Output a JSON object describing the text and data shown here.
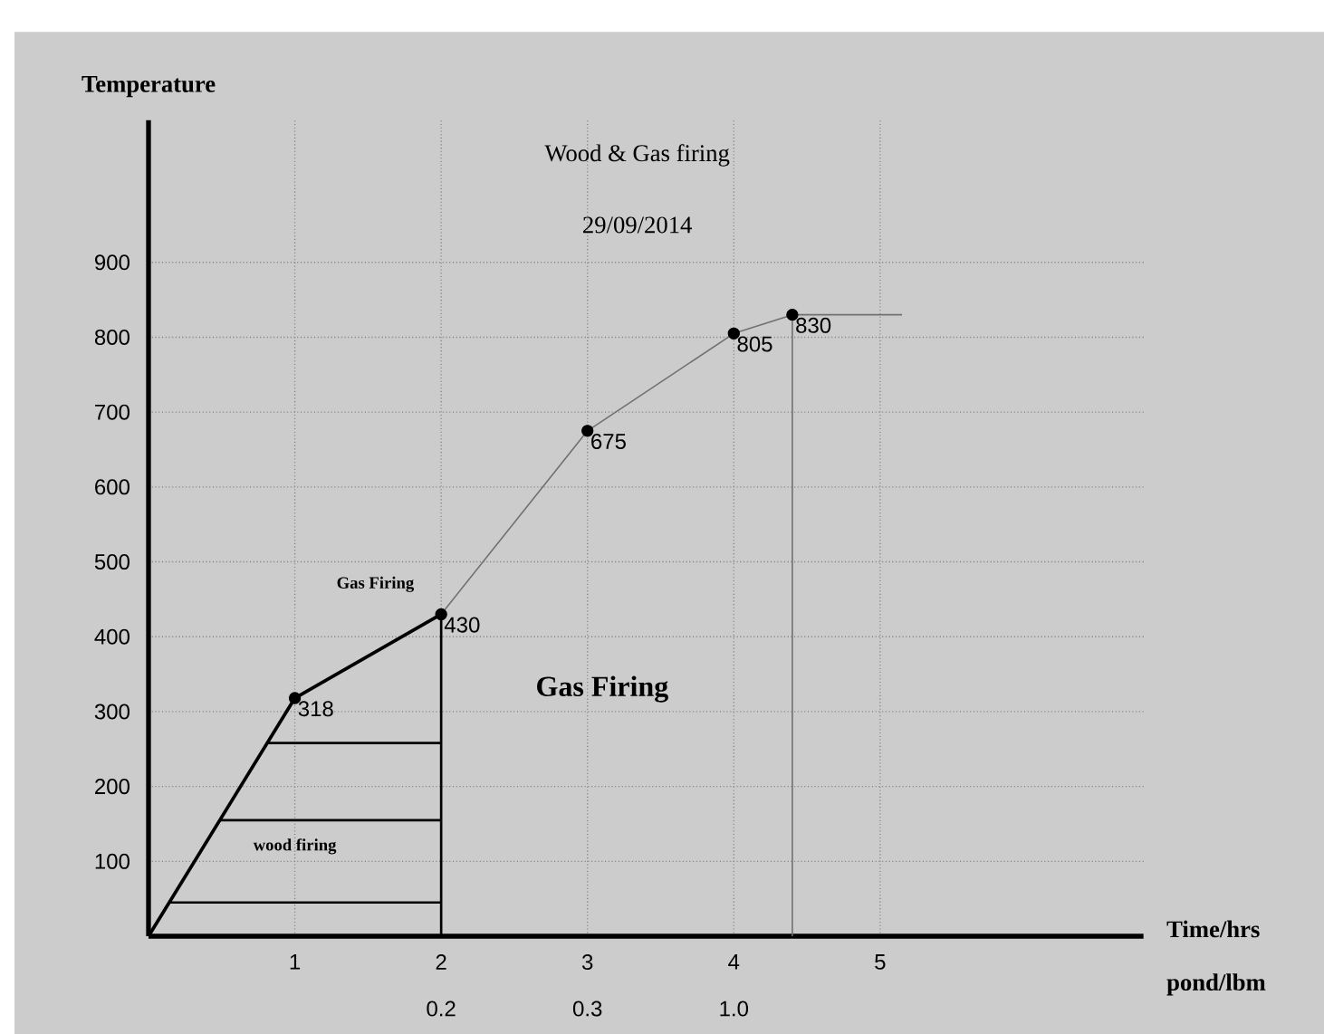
{
  "chart_data": {
    "type": "line",
    "title": "Wood & Gas firing",
    "subtitle": "29/09/2014",
    "xlabel": "Time/hrs",
    "x2label": "pond/lbm",
    "ylabel": "Temperature",
    "xlim": [
      0,
      6.8
    ],
    "ylim": [
      0,
      1090
    ],
    "xticks": [
      1,
      2,
      3,
      4,
      5
    ],
    "yticks": [
      100,
      200,
      300,
      400,
      500,
      600,
      700,
      800,
      900
    ],
    "grid": true,
    "series": [
      {
        "color": "#000000",
        "x": [
          0,
          1,
          2
        ],
        "values": [
          0,
          318,
          430
        ]
      },
      {
        "color": "#707070",
        "x": [
          2,
          3,
          4,
          4.4,
          5.15
        ],
        "values": [
          430,
          675,
          805,
          830,
          830
        ]
      },
      {
        "color": "#000000",
        "x": [
          0.14,
          2
        ],
        "values": [
          45,
          45
        ]
      },
      {
        "color": "#000000",
        "x": [
          0.49,
          2
        ],
        "values": [
          155,
          155
        ]
      },
      {
        "color": "#000000",
        "x": [
          0.81,
          2
        ],
        "values": [
          258,
          258
        ]
      },
      {
        "color": "#000000",
        "x": [
          2,
          2
        ],
        "values": [
          0,
          430
        ]
      },
      {
        "color": "#707070",
        "x": [
          4.4,
          4.4
        ],
        "values": [
          0,
          830
        ]
      },
      {
        "type": "scatter",
        "color": "#000000",
        "data_labels": true,
        "x": [
          1,
          2,
          3,
          4,
          4.4
        ],
        "values": [
          318,
          430,
          675,
          805,
          830
        ]
      }
    ],
    "annotations": [
      "Gas Firing",
      "Gas Firing",
      "wood firing",
      "0.2",
      "0.3",
      "1.0"
    ]
  }
}
